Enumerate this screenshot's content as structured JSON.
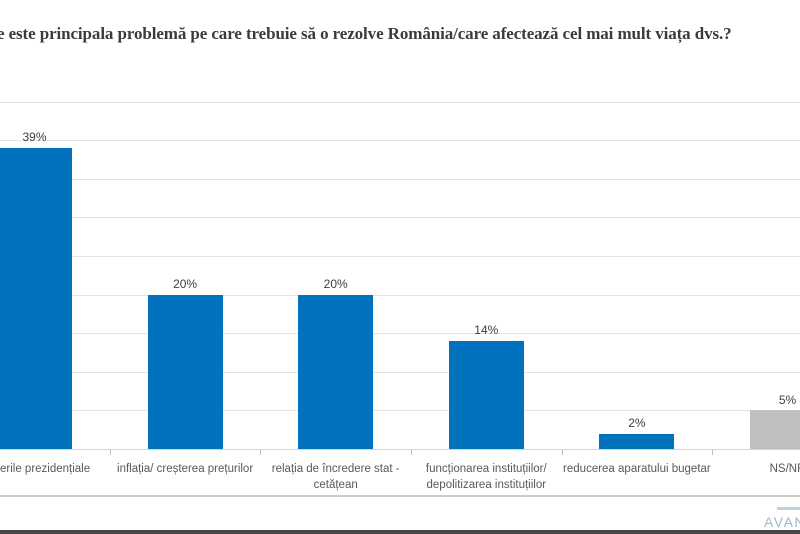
{
  "title": "e este principala problemă pe care trebuie să o rezolve România/care afectează cel mai mult viața dvs.?",
  "chart_data": {
    "type": "bar",
    "title": "e este principala problemă pe care trebuie să o rezolve România/care afectează cel mai mult viața dvs.?",
    "categories": [
      "erile prezidențiale",
      "inflația/ creșterea prețurilor",
      "relația de încredere stat - cetățean",
      "funcționarea instituțiilor/ depolitizarea instituțiilor",
      "reducerea aparatului bugetar",
      "NS/NR"
    ],
    "values": [
      39,
      20,
      20,
      14,
      2,
      5
    ],
    "value_labels": [
      "39%",
      "20%",
      "20%",
      "14%",
      "2%",
      "5%"
    ],
    "bar_colors": [
      "#0271be",
      "#0271be",
      "#0271be",
      "#0271be",
      "#0271be",
      "#bfbfbf"
    ],
    "xlabel": "",
    "ylabel": "",
    "ylim": [
      0,
      45
    ],
    "gridline_step": 5,
    "grid": true,
    "legend": false
  },
  "footer": {
    "logo_text": "AVAN"
  },
  "colors": {
    "bar_blue": "#0271be",
    "bar_gray": "#bfbfbf",
    "gridline": "#e4e4e4",
    "category_label": "#595959",
    "value_label": "#404040",
    "logo_teal": "#9bbac8",
    "bottom_rule": "#474747"
  }
}
